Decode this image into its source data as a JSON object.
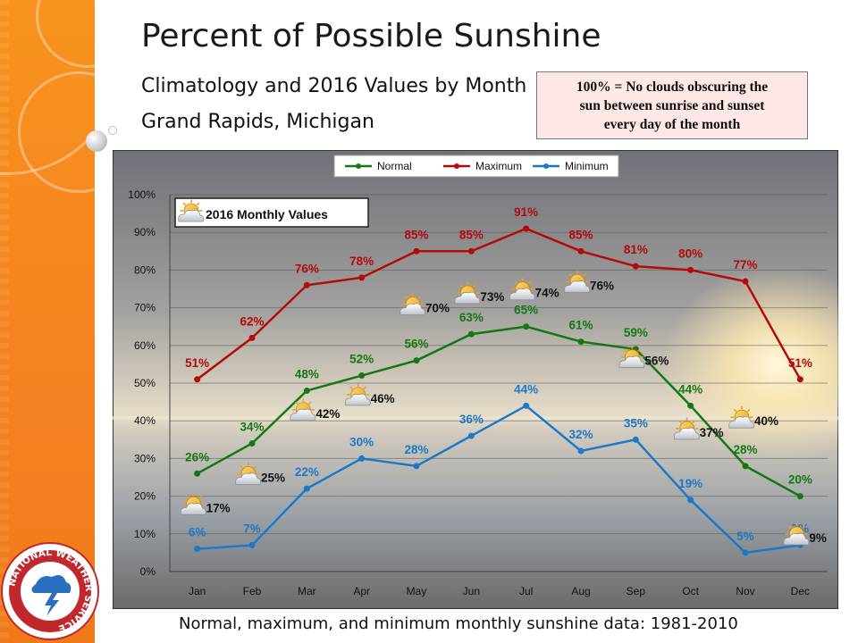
{
  "slide": {
    "title": "Percent of Possible Sunshine",
    "subtitle": "Climatology and 2016 Values by Month",
    "location": "Grand Rapids, Michigan",
    "note_lines": [
      "100% = No clouds obscuring the",
      "sun between sunrise and sunset",
      "every day of the month"
    ],
    "caption": "Normal, maximum, and minimum monthly sunshine data: 1981-2010",
    "logo_text": "NATIONAL WEATHER SERVICE"
  },
  "colors": {
    "normal": "#147814",
    "maximum": "#b40a0a",
    "minimum": "#1e78c8",
    "sidebar": "#f58220"
  },
  "chart_data": {
    "type": "line",
    "categories": [
      "Jan",
      "Feb",
      "Mar",
      "Apr",
      "May",
      "Jun",
      "Jul",
      "Aug",
      "Sep",
      "Oct",
      "Nov",
      "Dec"
    ],
    "ylim": [
      0,
      100
    ],
    "yticks": [
      "0%",
      "10%",
      "20%",
      "30%",
      "40%",
      "50%",
      "60%",
      "70%",
      "80%",
      "90%",
      "100%"
    ],
    "grid": true,
    "legend": "top-center",
    "series": [
      {
        "name": "Normal",
        "values": [
          26,
          34,
          48,
          52,
          56,
          63,
          65,
          61,
          59,
          44,
          28,
          20
        ]
      },
      {
        "name": "Maximum",
        "values": [
          51,
          62,
          76,
          78,
          85,
          85,
          91,
          85,
          81,
          80,
          77,
          51
        ]
      },
      {
        "name": "Minimum",
        "values": [
          6,
          7,
          22,
          30,
          28,
          36,
          44,
          32,
          35,
          19,
          5,
          7
        ]
      }
    ],
    "annotation_title": "2016 Monthly Values",
    "annotations_2016": [
      {
        "month": "Jan",
        "value": 17,
        "icon": "partly-cloudy-icon"
      },
      {
        "month": "Feb",
        "value": 25,
        "icon": "partly-cloudy-icon"
      },
      {
        "month": "Mar",
        "value": 42,
        "icon": "partly-cloudy-icon"
      },
      {
        "month": "Apr",
        "value": 46,
        "icon": "partly-cloudy-icon"
      },
      {
        "month": "May",
        "value": 70,
        "icon": "partly-cloudy-icon"
      },
      {
        "month": "Jun",
        "value": 73,
        "icon": "partly-cloudy-icon"
      },
      {
        "month": "Jul",
        "value": 74,
        "icon": "partly-cloudy-icon"
      },
      {
        "month": "Aug",
        "value": 76,
        "icon": "partly-cloudy-icon"
      },
      {
        "month": "Sep",
        "value": 56,
        "icon": "partly-cloudy-icon"
      },
      {
        "month": "Oct",
        "value": 37,
        "icon": "partly-cloudy-icon"
      },
      {
        "month": "Nov",
        "value": 40,
        "icon": "partly-cloudy-icon"
      },
      {
        "month": "Dec",
        "value": 9,
        "icon": "partly-cloudy-icon"
      }
    ]
  }
}
